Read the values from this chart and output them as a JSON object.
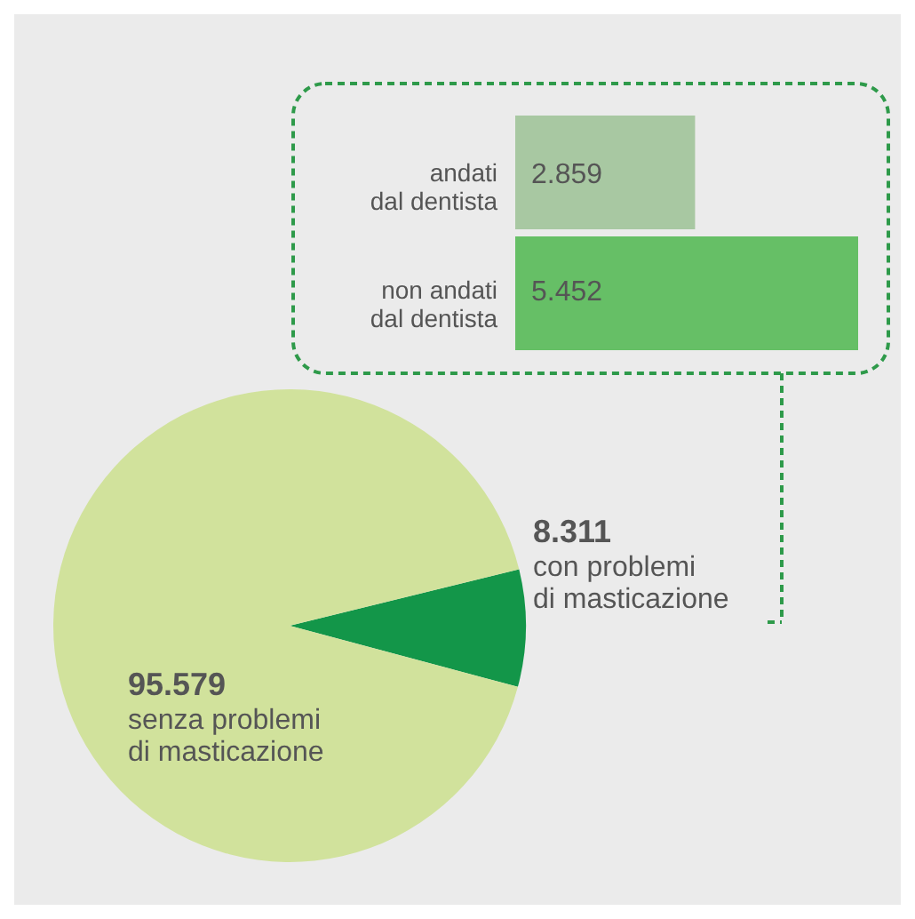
{
  "chart_data": [
    {
      "type": "bar",
      "orientation": "horizontal",
      "categories": [
        "andati\ndal dentista",
        "non andati\ndal dentista"
      ],
      "values": [
        2859,
        5452
      ],
      "value_labels": [
        "2.859",
        "5.452"
      ],
      "colors": [
        "#a8c8a2",
        "#66bf66"
      ]
    },
    {
      "type": "pie",
      "categories": [
        "con problemi\ndi masticazione",
        "senza problemi\ndi masticazione"
      ],
      "values": [
        8311,
        95579
      ],
      "value_labels": [
        "8.311",
        "95.579"
      ],
      "colors": [
        "#139649",
        "#d1e29c"
      ]
    }
  ]
}
